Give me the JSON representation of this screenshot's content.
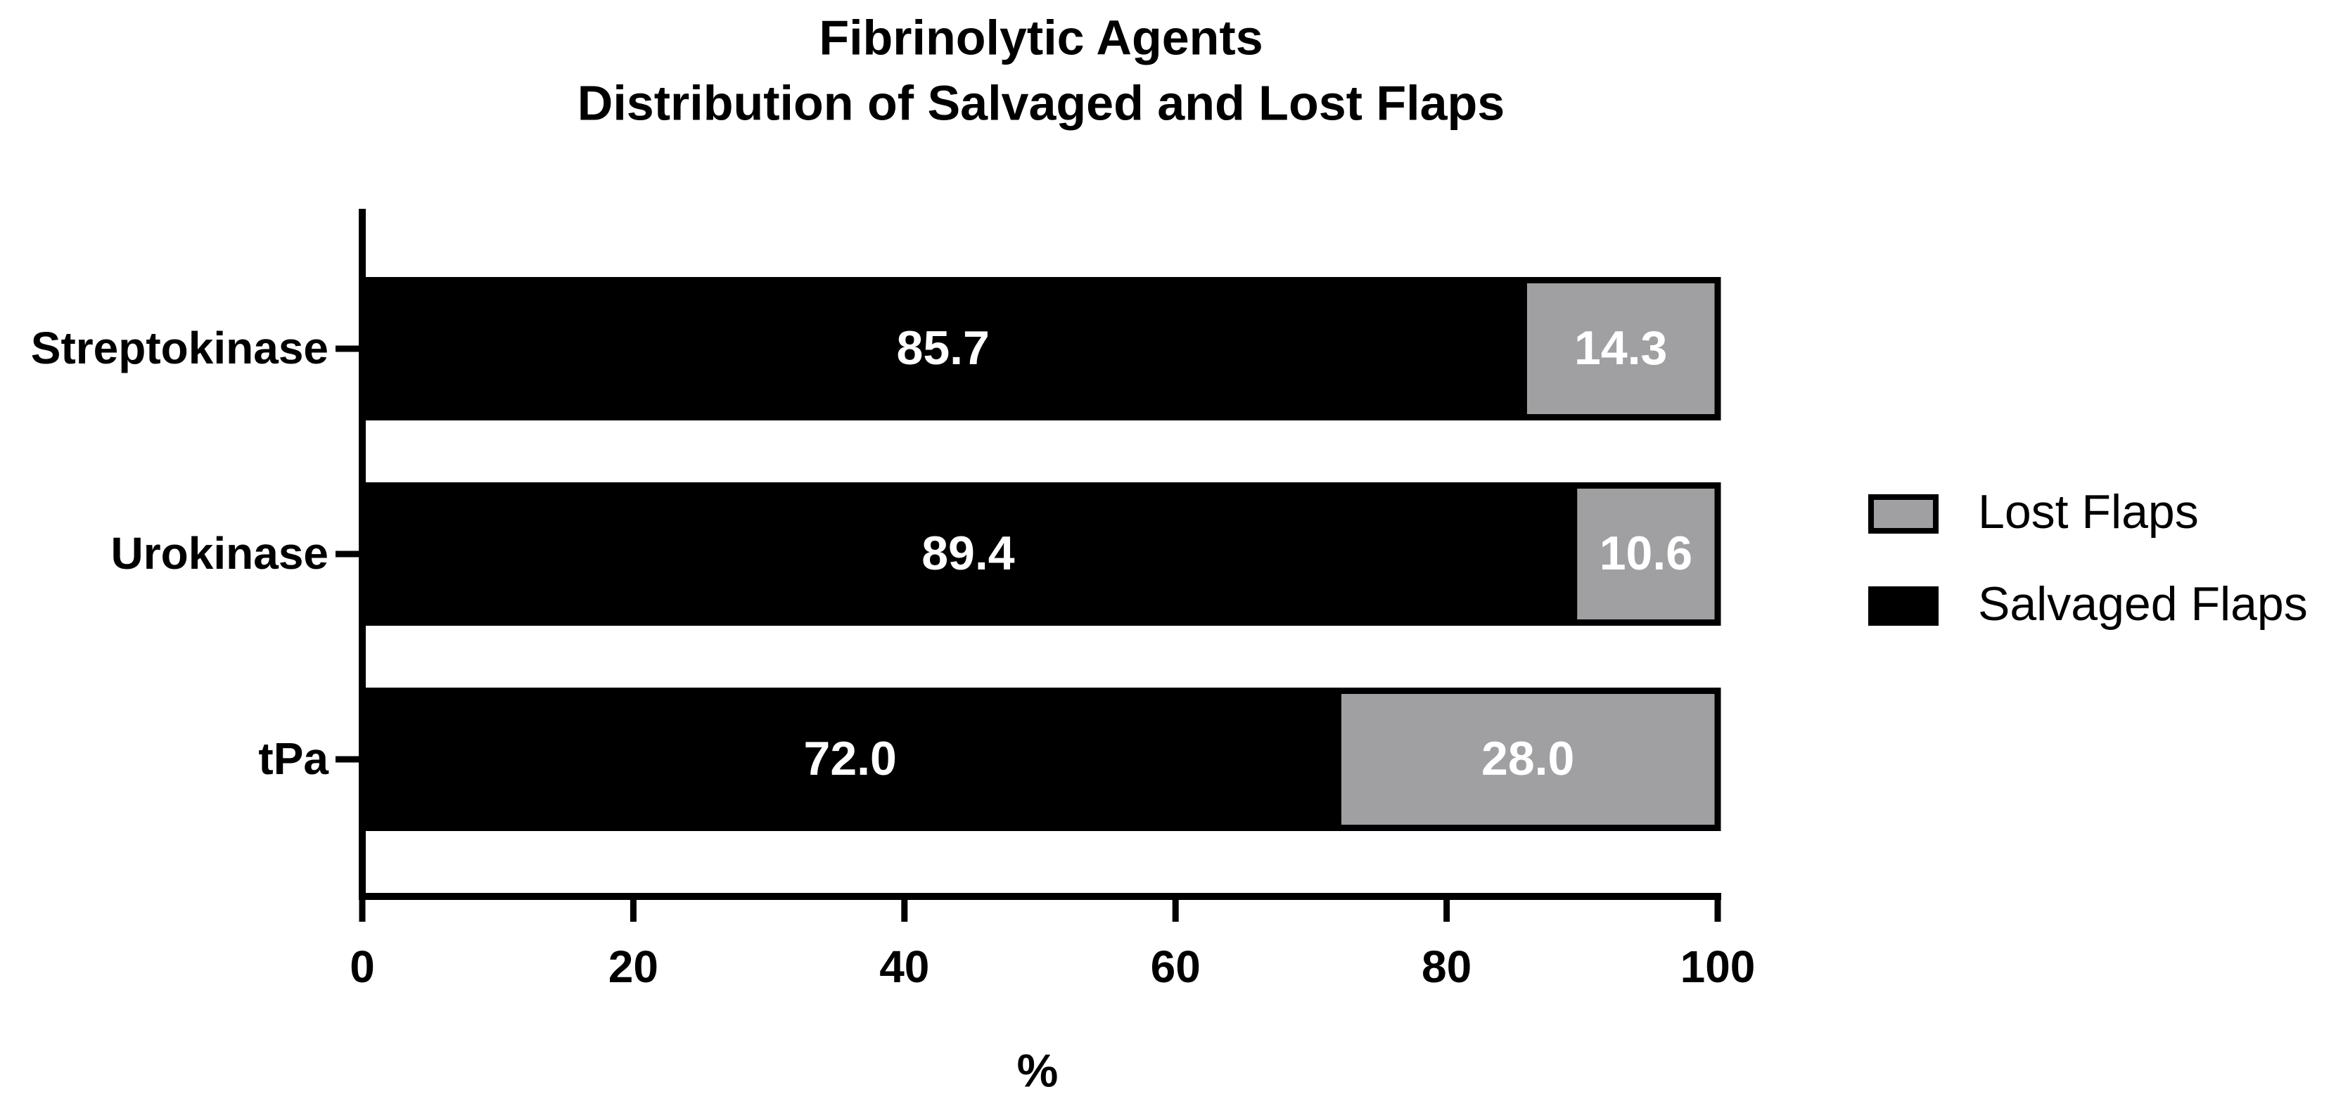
{
  "chart_data": {
    "type": "stacked-bar-horizontal",
    "title": [
      "Fibrinolytic Agents",
      "Distribution of Salvaged and Lost Flaps"
    ],
    "x_label": "%",
    "categories": [
      "Streptokinase",
      "Urokinase",
      "tPa"
    ],
    "series": [
      {
        "name": "Salvaged Flaps",
        "color": "#000000",
        "values": [
          85.7,
          89.4,
          72.0
        ],
        "value_labels": [
          "85.7",
          "89.4",
          "72.0"
        ]
      },
      {
        "name": "Lost Flaps",
        "color": "#a0a0a2",
        "values": [
          14.3,
          10.6,
          28.0
        ],
        "value_labels": [
          "14.3",
          "10.6",
          "28.0"
        ]
      }
    ],
    "xlim": [
      0,
      100
    ],
    "xticks": [
      0,
      20,
      40,
      60,
      80,
      100
    ],
    "grid": false,
    "legend": "right"
  }
}
